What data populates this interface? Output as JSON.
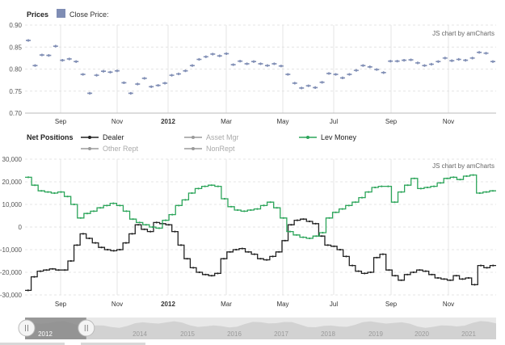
{
  "credits": "JS chart by amCharts",
  "colors": {
    "close": "#7f8db4",
    "dealer": "#222222",
    "asset_mgr": "#9a9a9a",
    "lev_money": "#2ca55a",
    "other_rept": "#9a9a9a",
    "nonrept": "#9a9a9a",
    "grid": "#e4e4e4",
    "scroll_bg": "#e8e8e8",
    "scroll_sel": "#8a8a8a"
  },
  "x_ticks": [
    "Sep",
    "Nov",
    "2012",
    "Mar",
    "May",
    "Jul",
    "Sep",
    "Nov"
  ],
  "chart_data": [
    {
      "type": "scatter",
      "title": "Prices",
      "legend": [
        {
          "name": "Close Price:",
          "color": "#7f8db4"
        }
      ],
      "yticks": [
        "0.90",
        "0.85",
        "0.80",
        "0.75",
        "0.70"
      ],
      "ylim": [
        0.7,
        0.9
      ],
      "x_ticks": [
        "Sep",
        "Nov",
        "2012",
        "Mar",
        "May",
        "Jul",
        "Sep",
        "Nov"
      ],
      "series": [
        {
          "name": "Close Price:",
          "values": [
            0.865,
            0.808,
            0.832,
            0.831,
            0.852,
            0.82,
            0.823,
            0.817,
            0.788,
            0.745,
            0.786,
            0.795,
            0.793,
            0.796,
            0.769,
            0.745,
            0.766,
            0.779,
            0.76,
            0.763,
            0.768,
            0.786,
            0.789,
            0.796,
            0.808,
            0.822,
            0.828,
            0.834,
            0.83,
            0.835,
            0.81,
            0.818,
            0.812,
            0.817,
            0.812,
            0.808,
            0.812,
            0.807,
            0.788,
            0.768,
            0.757,
            0.762,
            0.758,
            0.77,
            0.79,
            0.788,
            0.78,
            0.788,
            0.797,
            0.808,
            0.805,
            0.799,
            0.792,
            0.818,
            0.818,
            0.82,
            0.821,
            0.814,
            0.808,
            0.811,
            0.817,
            0.825,
            0.819,
            0.822,
            0.82,
            0.825,
            0.838,
            0.836,
            0.817
          ]
        }
      ]
    },
    {
      "type": "line",
      "title": "Net Positions",
      "legend_placement": "top",
      "yticks": [
        "30,000",
        "20,000",
        "10,000",
        "0",
        "-10,000",
        "-20,000",
        "-30,000"
      ],
      "ylim": [
        -30000,
        30000
      ],
      "x_ticks": [
        "Sep",
        "Nov",
        "2012",
        "Mar",
        "May",
        "Jul",
        "Sep",
        "Nov"
      ],
      "series": [
        {
          "name": "Dealer",
          "color": "#222222",
          "active": true,
          "values": [
            -28000,
            -22000,
            -19500,
            -19000,
            -18500,
            -19000,
            -19000,
            -15000,
            -8000,
            -3000,
            -5000,
            -7000,
            -9000,
            -10000,
            -10500,
            -10000,
            -7000,
            -3000,
            1000,
            -1000,
            -2000,
            2000,
            1500,
            1000,
            -2000,
            -8000,
            -14000,
            -18000,
            -20000,
            -21000,
            -21500,
            -20500,
            -14000,
            -11000,
            -10000,
            -9500,
            -11000,
            -12000,
            -14000,
            -14500,
            -13000,
            -11000,
            -6000,
            1000,
            3000,
            3500,
            2500,
            1500,
            -4000,
            -8000,
            -8500,
            -10000,
            -13000,
            -17000,
            -19500,
            -20500,
            -20000,
            -13500,
            -12000,
            -19000,
            -21500,
            -23500,
            -21000,
            -20000,
            -19000,
            -19500,
            -21000,
            -22500,
            -23000,
            -23500,
            -21500,
            -23000,
            -22500,
            -25500,
            -17000,
            -18000,
            -17000
          ]
        },
        {
          "name": "Asset Mgr",
          "color": "#9a9a9a",
          "active": false,
          "values": []
        },
        {
          "name": "Lev Money",
          "color": "#2ca55a",
          "active": true,
          "values": [
            22000,
            18500,
            16000,
            15500,
            15000,
            15500,
            13500,
            10000,
            4000,
            6000,
            7000,
            8500,
            9500,
            10500,
            9500,
            7000,
            3500,
            2000,
            1000,
            0,
            -500,
            3000,
            5500,
            9500,
            12000,
            15000,
            17000,
            18000,
            18500,
            18000,
            12500,
            9000,
            7500,
            7000,
            7500,
            8000,
            9500,
            11000,
            8500,
            4000,
            -2000,
            -3500,
            -4500,
            -5000,
            -4000,
            -2500,
            4000,
            6500,
            8000,
            9500,
            11000,
            13000,
            15500,
            17500,
            18000,
            18000,
            11000,
            15500,
            18500,
            21500,
            17000,
            17500,
            18000,
            19500,
            21500,
            22000,
            21000,
            22500,
            23000,
            15000,
            15500,
            16000
          ]
        },
        {
          "name": "Other Rept",
          "color": "#9a9a9a",
          "active": false,
          "values": []
        },
        {
          "name": "NonRept",
          "color": "#9a9a9a",
          "active": false,
          "values": []
        }
      ]
    }
  ],
  "scrollbar": {
    "labels": [
      "2012",
      "2014",
      "2015",
      "2016",
      "2017",
      "2018",
      "2019",
      "2020",
      "2021"
    ],
    "selection": [
      0,
      0.13
    ]
  }
}
